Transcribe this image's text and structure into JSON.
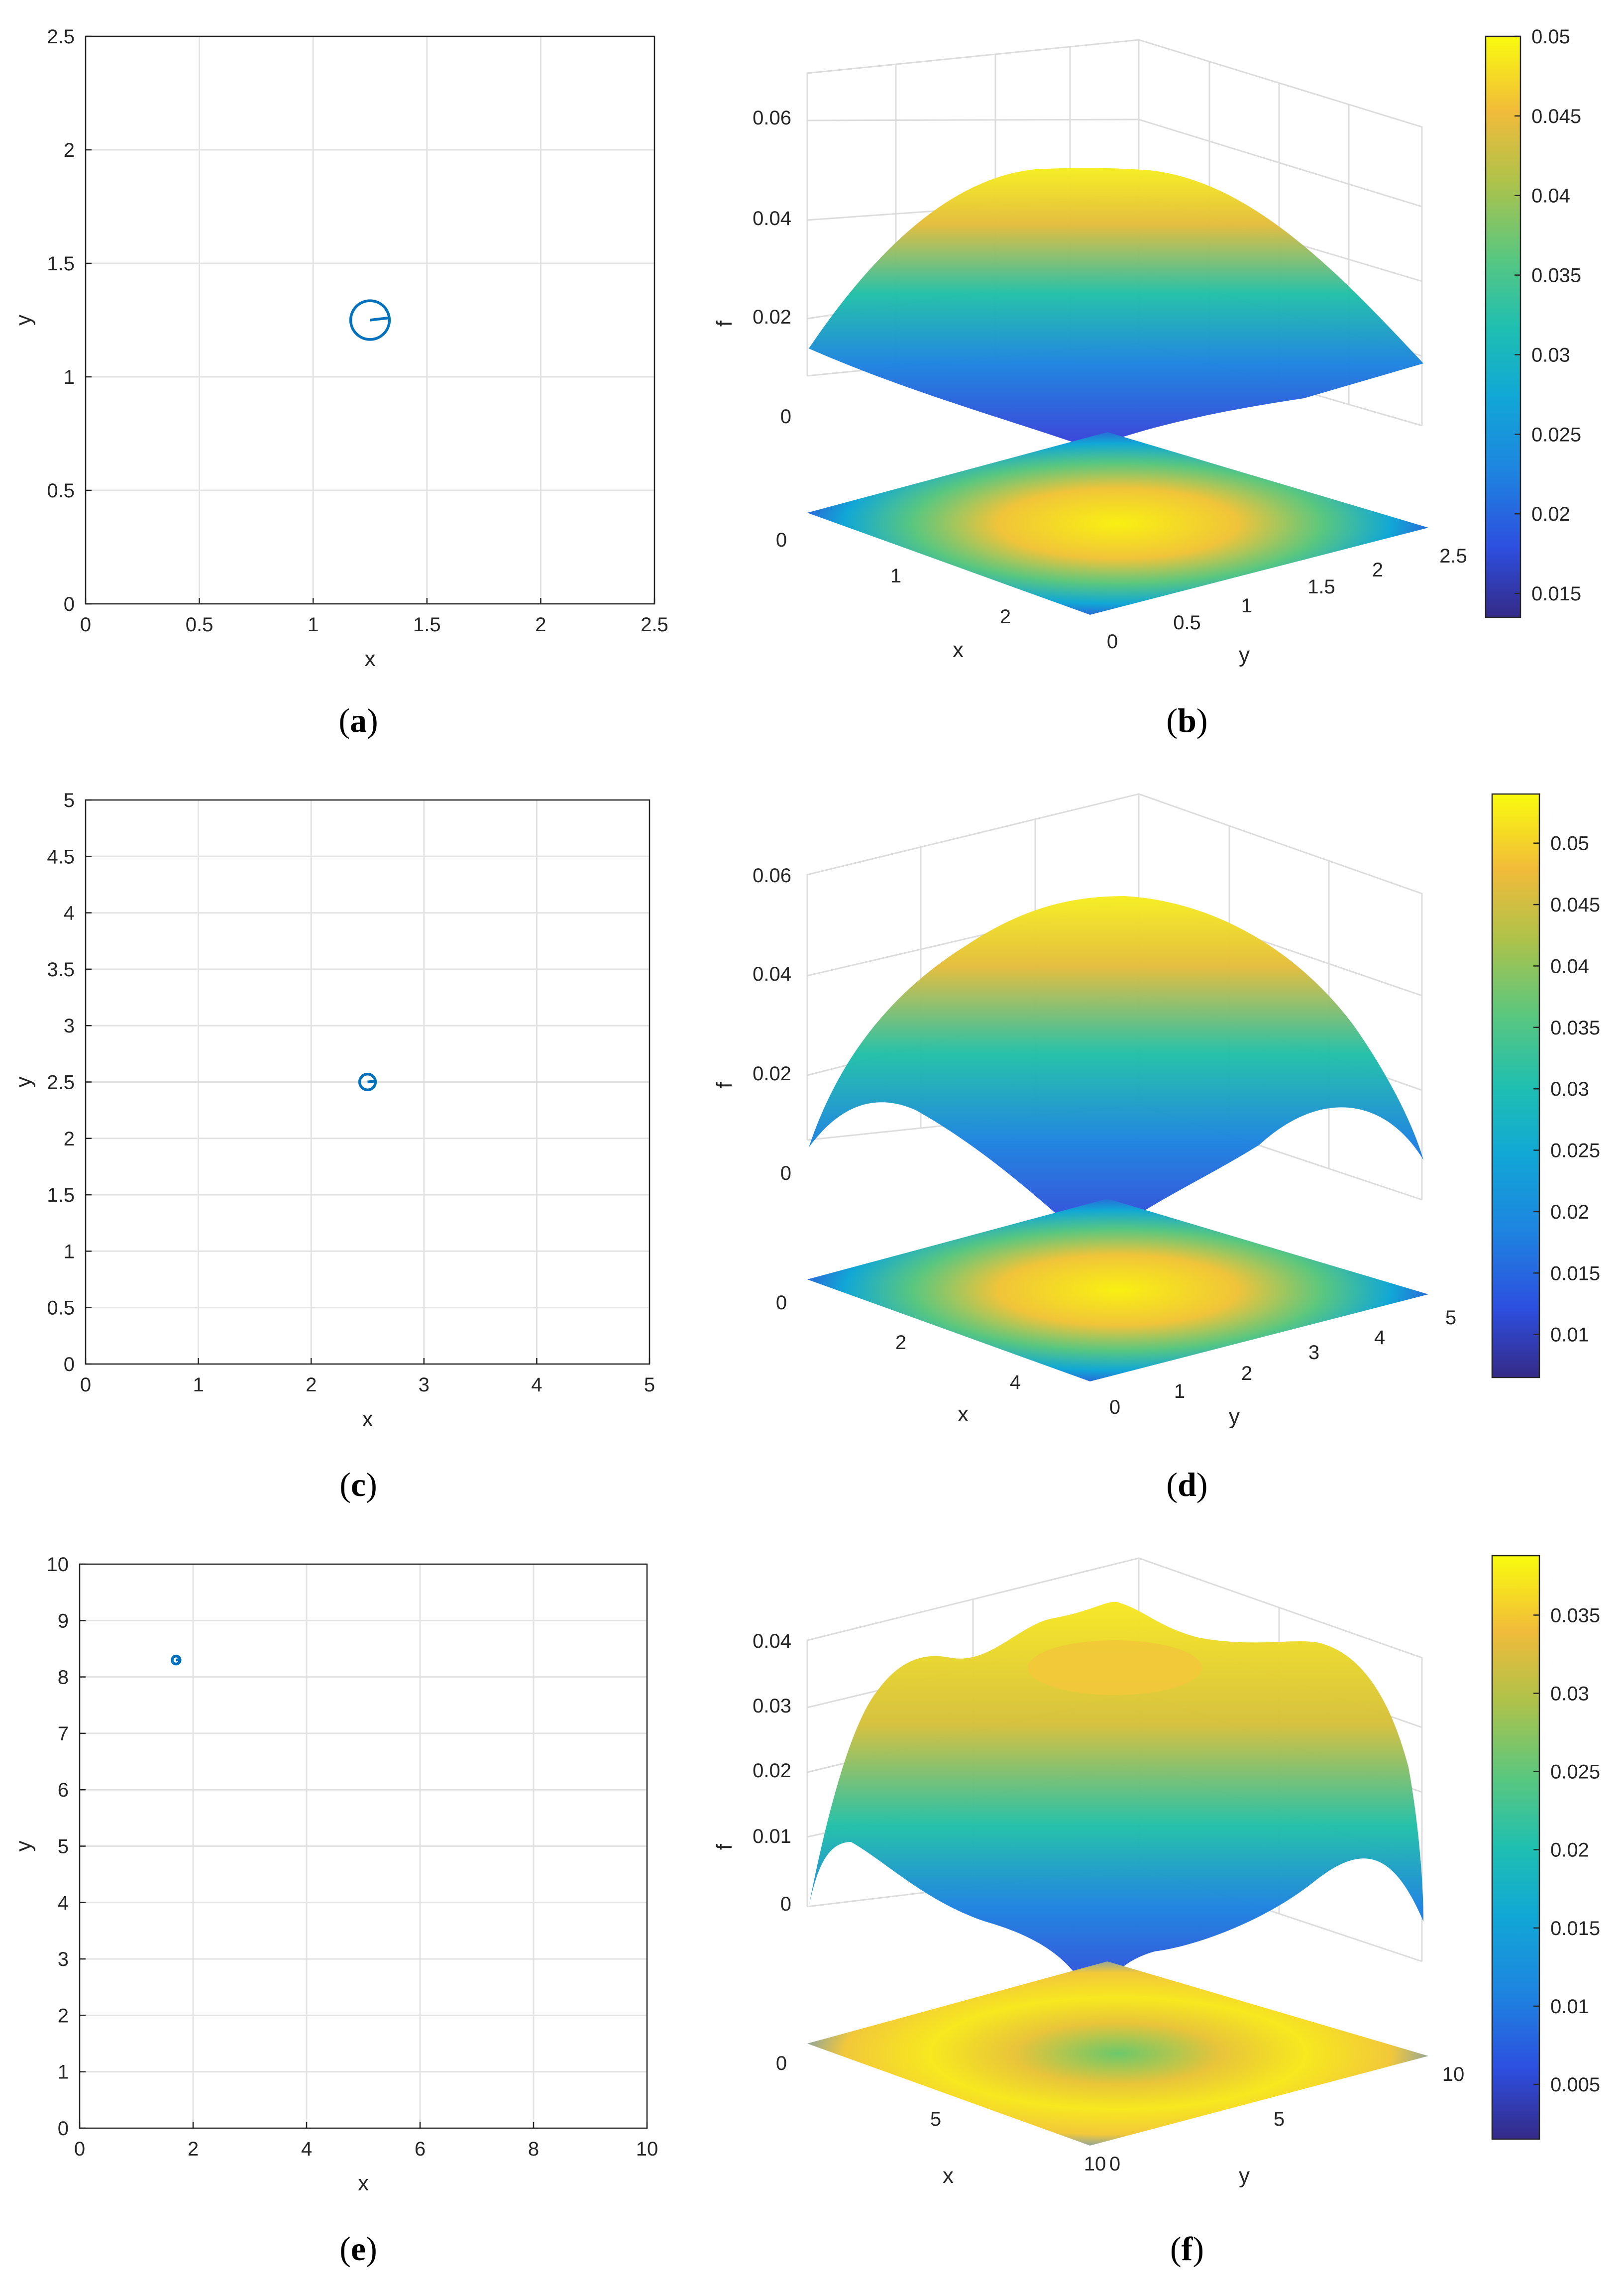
{
  "chart_data": [
    {
      "panel": "a",
      "type": "line",
      "caption_label": "a",
      "xlabel": "x",
      "ylabel": "y",
      "xlim": [
        0,
        2.5
      ],
      "ylim": [
        0,
        2.5
      ],
      "xticks": [
        "0",
        "0.5",
        "1",
        "1.5",
        "2",
        "2.5"
      ],
      "yticks": [
        "0",
        "0.5",
        "1",
        "1.5",
        "2",
        "2.5"
      ],
      "grid": true,
      "series": [
        {
          "name": "trajectory",
          "shape": "circle",
          "center": [
            1.25,
            1.25
          ],
          "radius": 0.085,
          "color": "#0072BD"
        }
      ]
    },
    {
      "panel": "b",
      "type": "surface",
      "caption_label": "b",
      "xlabel": "x",
      "ylabel": "y",
      "zlabel": "f",
      "xticks": [
        "0",
        "1",
        "2"
      ],
      "yticks": [
        "0",
        "0.5",
        "1",
        "1.5",
        "2",
        "2.5"
      ],
      "zticks": [
        "0",
        "0.02",
        "0.04",
        "0.06"
      ],
      "colorbar": {
        "min": 0.0135,
        "max": 0.05,
        "ticks": [
          "0.015",
          "0.02",
          "0.025",
          "0.03",
          "0.035",
          "0.04",
          "0.045",
          "0.05"
        ]
      }
    },
    {
      "panel": "c",
      "type": "line",
      "caption_label": "c",
      "xlabel": "x",
      "ylabel": "y",
      "xlim": [
        0,
        5
      ],
      "ylim": [
        0,
        5
      ],
      "xticks": [
        "0",
        "1",
        "2",
        "3",
        "4",
        "5"
      ],
      "yticks": [
        "0",
        "0.5",
        "1",
        "1.5",
        "2",
        "2.5",
        "3",
        "3.5",
        "4",
        "4.5",
        "5"
      ],
      "grid": true,
      "series": [
        {
          "name": "trajectory",
          "shape": "circle",
          "center": [
            2.5,
            2.5
          ],
          "radius": 0.07,
          "color": "#0072BD"
        }
      ]
    },
    {
      "panel": "d",
      "type": "surface",
      "caption_label": "d",
      "xlabel": "x",
      "ylabel": "y",
      "zlabel": "f",
      "xticks": [
        "0",
        "2",
        "4"
      ],
      "yticks": [
        "0",
        "1",
        "2",
        "3",
        "4",
        "5"
      ],
      "zticks": [
        "0",
        "0.02",
        "0.04",
        "0.06"
      ],
      "colorbar": {
        "min": 0.0065,
        "max": 0.054,
        "ticks": [
          "0.01",
          "0.015",
          "0.02",
          "0.025",
          "0.03",
          "0.035",
          "0.04",
          "0.045",
          "0.05"
        ]
      }
    },
    {
      "panel": "e",
      "type": "line",
      "caption_label": "e",
      "xlabel": "x",
      "ylabel": "y",
      "xlim": [
        0,
        10
      ],
      "ylim": [
        0,
        10
      ],
      "xticks": [
        "0",
        "2",
        "4",
        "6",
        "8",
        "10"
      ],
      "yticks": [
        "0",
        "1",
        "2",
        "3",
        "4",
        "5",
        "6",
        "7",
        "8",
        "9",
        "10"
      ],
      "grid": true,
      "series": [
        {
          "name": "trajectory",
          "shape": "circle",
          "center": [
            1.7,
            8.3
          ],
          "radius": 0.07,
          "color": "#0072BD"
        }
      ]
    },
    {
      "panel": "f",
      "type": "surface",
      "caption_label": "f",
      "xlabel": "x",
      "ylabel": "y",
      "zlabel": "f",
      "xticks": [
        "0",
        "5",
        "10"
      ],
      "yticks": [
        "0",
        "5",
        "10"
      ],
      "zticks": [
        "0",
        "0.01",
        "0.02",
        "0.03",
        "0.04"
      ],
      "colorbar": {
        "min": 0.0015,
        "max": 0.0388,
        "ticks": [
          "0.005",
          "0.01",
          "0.015",
          "0.02",
          "0.025",
          "0.03",
          "0.035"
        ]
      }
    }
  ]
}
